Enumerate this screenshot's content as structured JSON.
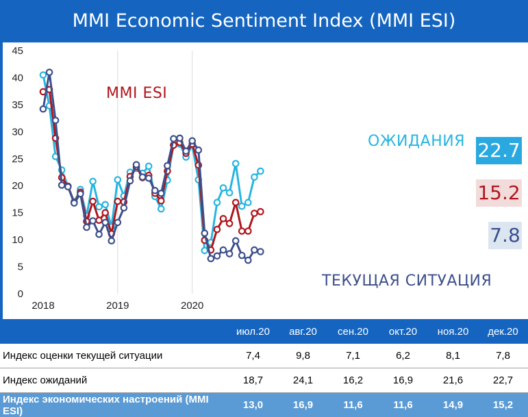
{
  "title": "MMI Economic Sentiment Index (MMI ESI)",
  "labels": {
    "esi": "MMI ESI",
    "expectations": "ОЖИДАНИЯ",
    "current": "ТЕКУЩАЯ СИТУАЦИЯ"
  },
  "end_values": {
    "expectations": "22.7",
    "esi": "15.2",
    "current": "7.8"
  },
  "colors": {
    "expectations": "#26b5e0",
    "esi": "#b0151c",
    "current": "#3c4f8c",
    "header_bg": "#1565c0",
    "total_row_bg": "#5b9bd5"
  },
  "chart_data": {
    "type": "line",
    "ylim": [
      0,
      45
    ],
    "yticks": [
      "0",
      "5",
      "10",
      "15",
      "20",
      "25",
      "30",
      "35",
      "40",
      "45"
    ],
    "xticks": [
      "2018",
      "2019",
      "2020"
    ],
    "grid": "vertical-at-year",
    "x": [
      "2018-01",
      "2018-02",
      "2018-03",
      "2018-04",
      "2018-05",
      "2018-06",
      "2018-07",
      "2018-08",
      "2018-09",
      "2018-10",
      "2018-11",
      "2018-12",
      "2019-01",
      "2019-02",
      "2019-03",
      "2019-04",
      "2019-05",
      "2019-06",
      "2019-07",
      "2019-08",
      "2019-09",
      "2019-10",
      "2019-11",
      "2019-12",
      "2020-01",
      "2020-02",
      "2020-03",
      "2020-04",
      "2020-05",
      "2020-06",
      "2020-07",
      "2020-08",
      "2020-09",
      "2020-10",
      "2020-11",
      "2020-12"
    ],
    "series": [
      {
        "name": "ОЖИДАНИЯ",
        "key": "expectations",
        "values": [
          40.5,
          34.8,
          25.4,
          22.9,
          19.9,
          17.0,
          19.3,
          14.4,
          20.8,
          16.1,
          16.5,
          12.4,
          21.1,
          18.1,
          22.5,
          23.2,
          22.3,
          23.6,
          18.0,
          15.7,
          21.0,
          27.6,
          27.7,
          25.3,
          27.5,
          21.1,
          8.0,
          9.5,
          16.9,
          19.6,
          18.7,
          24.1,
          16.2,
          16.9,
          21.6,
          22.7
        ]
      },
      {
        "name": "MMI ESI",
        "key": "esi",
        "values": [
          37.4,
          37.8,
          28.8,
          21.5,
          19.9,
          16.9,
          18.8,
          13.4,
          17.1,
          13.6,
          15.0,
          11.1,
          17.1,
          17.0,
          21.7,
          23.5,
          21.5,
          21.9,
          18.6,
          17.2,
          22.7,
          27.5,
          28.0,
          26.0,
          27.7,
          23.8,
          9.9,
          8.1,
          11.9,
          13.9,
          13.0,
          16.9,
          11.6,
          11.6,
          14.9,
          15.2
        ]
      },
      {
        "name": "ТЕКУЩАЯ СИТУАЦИЯ",
        "key": "current",
        "values": [
          34.2,
          41.0,
          32.1,
          20.1,
          19.8,
          16.8,
          18.5,
          12.3,
          13.5,
          11.0,
          13.2,
          9.8,
          13.2,
          15.9,
          20.9,
          23.9,
          21.6,
          21.4,
          19.1,
          18.6,
          23.7,
          28.7,
          28.8,
          26.4,
          28.3,
          26.6,
          11.2,
          6.5,
          7.0,
          8.1,
          7.4,
          9.8,
          7.1,
          6.2,
          8.1,
          7.8
        ]
      }
    ]
  },
  "table": {
    "columns": [
      "июл.20",
      "авг.20",
      "сен.20",
      "окт.20",
      "ноя.20",
      "дек.20"
    ],
    "rows": [
      {
        "label": "Индекс оценки текущей ситуации",
        "values": [
          "7,4",
          "9,8",
          "7,1",
          "6,2",
          "8,1",
          "7,8"
        ]
      },
      {
        "label": "Индекс ожиданий",
        "values": [
          "18,7",
          "24,1",
          "16,2",
          "16,9",
          "21,6",
          "22,7"
        ]
      }
    ],
    "total": {
      "label": "Индекс экономических настроений (MMI ESI)",
      "values": [
        "13,0",
        "16,9",
        "11,6",
        "11,6",
        "14,9",
        "15,2"
      ]
    }
  }
}
